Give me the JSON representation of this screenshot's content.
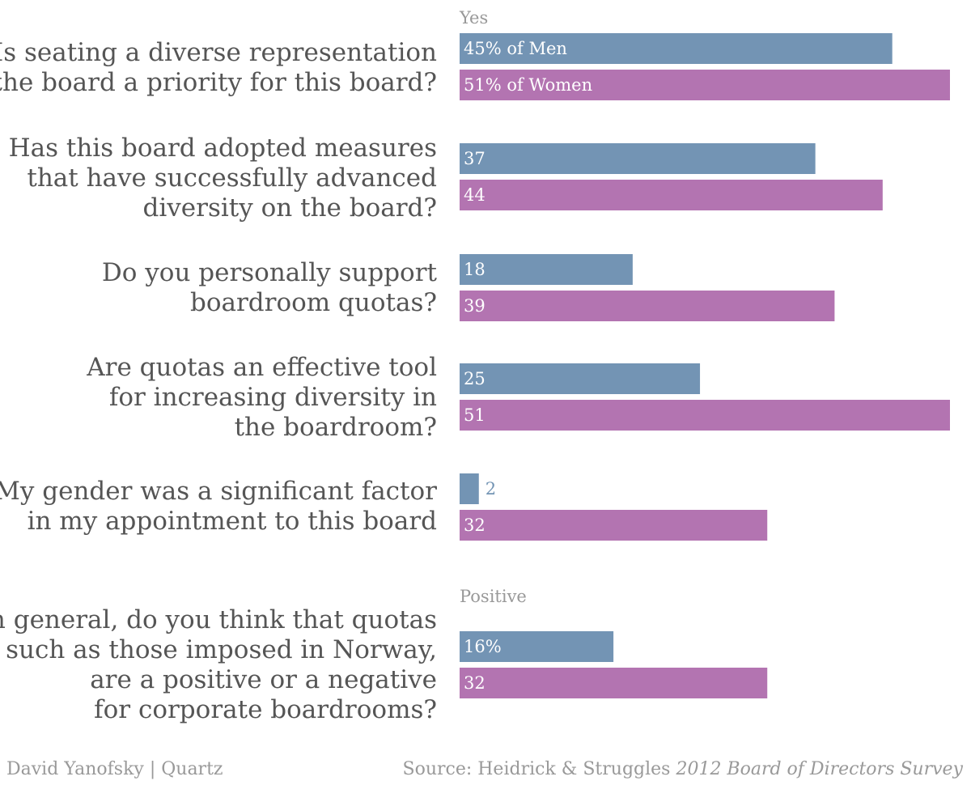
{
  "colors": {
    "men": "#7394b4",
    "women": "#b374b1",
    "question_text": "#555555",
    "muted": "#999999"
  },
  "chart_data": {
    "type": "bar",
    "orientation": "horizontal",
    "unit": "%",
    "xlim": [
      0,
      51
    ],
    "series_names": [
      "Men",
      "Women"
    ],
    "sections": [
      {
        "label": "Yes",
        "question_indices": [
          0,
          1,
          2,
          3,
          4
        ]
      },
      {
        "label": "Positive",
        "question_indices": [
          5
        ]
      }
    ],
    "questions": [
      {
        "lines": [
          "Is seating a diverse representation",
          "on the board a priority for this board?"
        ],
        "men": 45,
        "women": 51,
        "men_label": "45% of Men",
        "women_label": "51% of Women"
      },
      {
        "lines": [
          "Has this board adopted measures",
          "that have successfully advanced",
          "diversity on the board?"
        ],
        "men": 37,
        "women": 44,
        "men_label": "37",
        "women_label": "44"
      },
      {
        "lines": [
          "Do you personally support",
          "boardroom quotas?"
        ],
        "men": 18,
        "women": 39,
        "men_label": "18",
        "women_label": "39"
      },
      {
        "lines": [
          "Are quotas an effective tool",
          "for increasing diversity in",
          "the boardroom?"
        ],
        "men": 25,
        "women": 51,
        "men_label": "25",
        "women_label": "51"
      },
      {
        "lines": [
          "My gender was a significant factor",
          "in my appointment to this board"
        ],
        "men": 2,
        "women": 32,
        "men_label": "2",
        "women_label": "32"
      },
      {
        "lines": [
          "In general, do you think that quotas",
          "such as those imposed in Norway,",
          "are a positive or a negative",
          "for corporate boardrooms?"
        ],
        "men": 16,
        "women": 32,
        "men_label": "16%",
        "women_label": "32"
      }
    ]
  },
  "footer": {
    "credit": "David Yanofsky | Quartz",
    "source_prefix": "Source: Heidrick & Struggles ",
    "source_title": "2012 Board of Directors Survey"
  }
}
